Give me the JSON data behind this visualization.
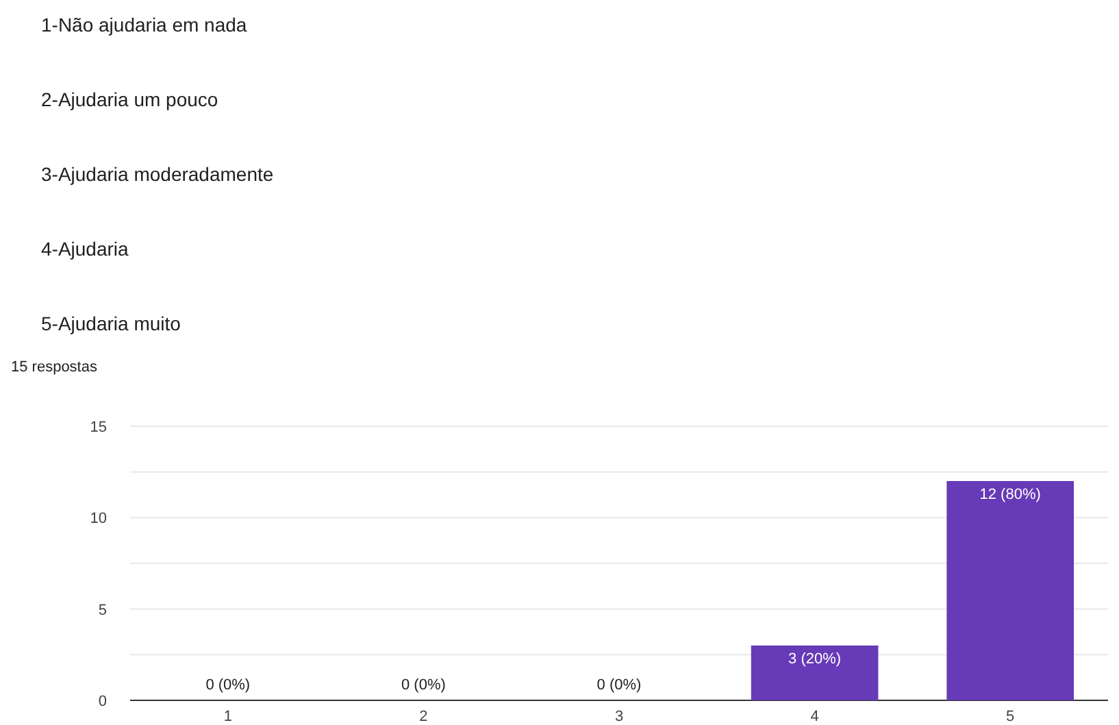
{
  "chart_data": {
    "type": "bar",
    "annotations": [
      "1-Não ajudaria em nada",
      "2-Ajudaria um pouco",
      "3-Ajudaria moderadamente",
      "4-Ajudaria",
      "5-Ajudaria muito",
      "15 respostas"
    ],
    "categories": [
      "1",
      "2",
      "3",
      "4",
      "5"
    ],
    "values": [
      0,
      0,
      0,
      3,
      12
    ],
    "value_labels": [
      "0 (0%)",
      "0 (0%)",
      "0 (0%)",
      "3 (20%)",
      "12 (80%)"
    ],
    "color": "#673ab7",
    "ylim": [
      0,
      15
    ],
    "yticks": [
      0,
      {
        "value": 2.5,
        "label": null
      },
      5,
      {
        "value": 7.5,
        "label": null
      },
      10,
      {
        "value": 12.5,
        "label": null
      },
      15
    ],
    "grid": "y"
  }
}
